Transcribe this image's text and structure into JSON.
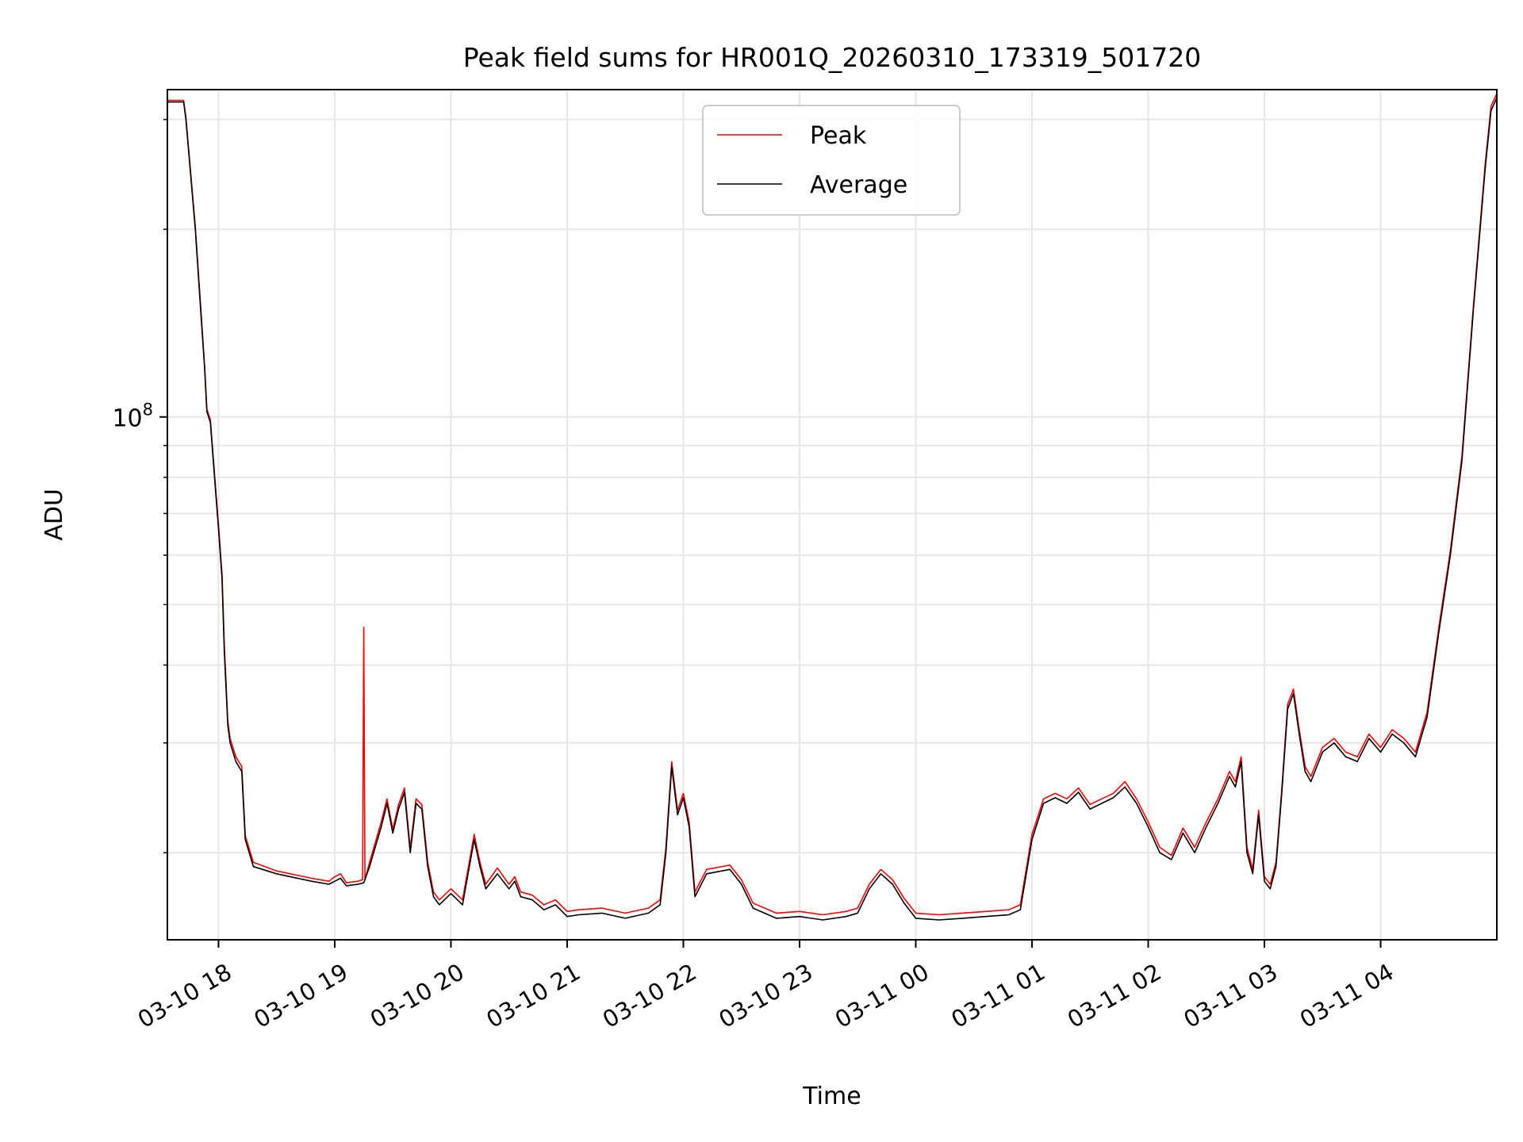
{
  "chart_data": {
    "type": "line",
    "title": "Peak field sums for HR001Q_20260310_173319_501720",
    "xlabel": "Time",
    "ylabel": "ADU",
    "yscale": "log",
    "ylim": [
      14500000,
      335000000
    ],
    "xlim_hours": [
      17.56,
      29.0
    ],
    "x_ticks": [
      {
        "hour": 18,
        "label": "03-10 18"
      },
      {
        "hour": 19,
        "label": "03-10 19"
      },
      {
        "hour": 20,
        "label": "03-10 20"
      },
      {
        "hour": 21,
        "label": "03-10 21"
      },
      {
        "hour": 22,
        "label": "03-10 22"
      },
      {
        "hour": 23,
        "label": "03-10 23"
      },
      {
        "hour": 24,
        "label": "03-11 00"
      },
      {
        "hour": 25,
        "label": "03-11 01"
      },
      {
        "hour": 26,
        "label": "03-11 02"
      },
      {
        "hour": 27,
        "label": "03-11 03"
      },
      {
        "hour": 28,
        "label": "03-11 04"
      }
    ],
    "y_major_ticks": [
      {
        "value": 100000000,
        "base": "10",
        "exp": "8"
      }
    ],
    "y_minor_ticks": [
      20000000,
      30000000,
      40000000,
      50000000,
      60000000,
      70000000,
      80000000,
      90000000,
      200000000,
      300000000
    ],
    "grid": true,
    "legend": {
      "position": "top-center",
      "entries": [
        "Peak",
        "Average"
      ]
    },
    "series": [
      {
        "name": "Average",
        "color": "#000000",
        "x_hours": [
          17.56,
          17.7,
          17.72,
          17.8,
          17.85,
          17.88,
          17.9,
          17.93,
          17.97,
          18.0,
          18.03,
          18.05,
          18.08,
          18.1,
          18.15,
          18.2,
          18.23,
          18.3,
          18.5,
          18.8,
          18.95,
          19.0,
          19.05,
          19.1,
          19.2,
          19.25,
          19.3,
          19.4,
          19.45,
          19.5,
          19.55,
          19.6,
          19.65,
          19.7,
          19.75,
          19.8,
          19.85,
          19.9,
          20.0,
          20.1,
          20.2,
          20.25,
          20.3,
          20.4,
          20.5,
          20.55,
          20.6,
          20.7,
          20.8,
          20.9,
          21.0,
          21.1,
          21.3,
          21.5,
          21.7,
          21.8,
          21.85,
          21.9,
          21.95,
          22.0,
          22.05,
          22.1,
          22.2,
          22.4,
          22.5,
          22.6,
          22.8,
          23.0,
          23.2,
          23.4,
          23.5,
          23.6,
          23.7,
          23.8,
          23.9,
          24.0,
          24.2,
          24.4,
          24.6,
          24.8,
          24.9,
          25.0,
          25.1,
          25.2,
          25.3,
          25.4,
          25.5,
          25.6,
          25.7,
          25.8,
          25.9,
          26.0,
          26.1,
          26.2,
          26.3,
          26.4,
          26.5,
          26.6,
          26.7,
          26.75,
          26.8,
          26.85,
          26.9,
          26.95,
          27.0,
          27.05,
          27.1,
          27.15,
          27.2,
          27.25,
          27.3,
          27.35,
          27.4,
          27.5,
          27.6,
          27.7,
          27.8,
          27.9,
          28.0,
          28.1,
          28.2,
          28.3,
          28.4,
          28.5,
          28.6,
          28.7,
          28.8,
          28.9,
          28.95,
          29.0
        ],
        "values": [
          320000000,
          320000000,
          300000000,
          200000000,
          145000000,
          120000000,
          102000000,
          98000000,
          78000000,
          66000000,
          55000000,
          42000000,
          32000000,
          30000000,
          28000000,
          27000000,
          21000000,
          19000000,
          18500000,
          18000000,
          17800000,
          18000000,
          18200000,
          17700000,
          17800000,
          17900000,
          19000000,
          22000000,
          24000000,
          21500000,
          23500000,
          25000000,
          20000000,
          24000000,
          23500000,
          19000000,
          17000000,
          16500000,
          17200000,
          16500000,
          21000000,
          19000000,
          17500000,
          18500000,
          17500000,
          18000000,
          17000000,
          16800000,
          16200000,
          16500000,
          15800000,
          15900000,
          16000000,
          15700000,
          16000000,
          16500000,
          20000000,
          27500000,
          23000000,
          24500000,
          22000000,
          17000000,
          18500000,
          18800000,
          17800000,
          16300000,
          15700000,
          15800000,
          15600000,
          15800000,
          16000000,
          17500000,
          18500000,
          17800000,
          16600000,
          15700000,
          15600000,
          15700000,
          15800000,
          15900000,
          16200000,
          21000000,
          24000000,
          24500000,
          24000000,
          25000000,
          23500000,
          24000000,
          24500000,
          25500000,
          24000000,
          22000000,
          20000000,
          19500000,
          21500000,
          20000000,
          22000000,
          24000000,
          26500000,
          25500000,
          28000000,
          20000000,
          18500000,
          23000000,
          18000000,
          17500000,
          19000000,
          25000000,
          34000000,
          36000000,
          31000000,
          27000000,
          26000000,
          29000000,
          30000000,
          28500000,
          28000000,
          30500000,
          29000000,
          31000000,
          30000000,
          28500000,
          33000000,
          45000000,
          60000000,
          85000000,
          150000000,
          250000000,
          310000000,
          325000000
        ]
      },
      {
        "name": "Peak",
        "color": "#ff0000",
        "x_hours": [
          17.56,
          17.7,
          17.72,
          17.8,
          17.85,
          17.88,
          17.9,
          17.93,
          17.97,
          18.0,
          18.03,
          18.05,
          18.08,
          18.1,
          18.15,
          18.2,
          18.23,
          18.3,
          18.5,
          18.8,
          18.95,
          19.0,
          19.05,
          19.1,
          19.2,
          19.24,
          19.25,
          19.26,
          19.3,
          19.4,
          19.45,
          19.5,
          19.55,
          19.6,
          19.65,
          19.7,
          19.75,
          19.8,
          19.85,
          19.9,
          20.0,
          20.1,
          20.2,
          20.25,
          20.3,
          20.4,
          20.5,
          20.55,
          20.6,
          20.7,
          20.8,
          20.9,
          21.0,
          21.1,
          21.3,
          21.5,
          21.7,
          21.8,
          21.85,
          21.9,
          21.95,
          22.0,
          22.05,
          22.1,
          22.2,
          22.4,
          22.5,
          22.6,
          22.8,
          23.0,
          23.2,
          23.4,
          23.5,
          23.6,
          23.7,
          23.8,
          23.9,
          24.0,
          24.2,
          24.4,
          24.6,
          24.8,
          24.9,
          25.0,
          25.1,
          25.2,
          25.3,
          25.4,
          25.5,
          25.6,
          25.7,
          25.8,
          25.9,
          26.0,
          26.1,
          26.2,
          26.3,
          26.4,
          26.5,
          26.6,
          26.7,
          26.75,
          26.8,
          26.85,
          26.9,
          26.95,
          27.0,
          27.05,
          27.1,
          27.15,
          27.2,
          27.25,
          27.3,
          27.35,
          27.4,
          27.5,
          27.6,
          27.7,
          27.8,
          27.9,
          28.0,
          28.1,
          28.2,
          28.3,
          28.4,
          28.5,
          28.6,
          28.7,
          28.8,
          28.9,
          28.95,
          29.0
        ],
        "values": [
          322000000,
          322000000,
          302000000,
          202000000,
          147000000,
          121000000,
          103000000,
          99000000,
          79000000,
          67000000,
          56000000,
          43000000,
          32500000,
          30500000,
          28500000,
          27500000,
          21300000,
          19300000,
          18700000,
          18200000,
          18000000,
          18300000,
          18500000,
          17900000,
          18000000,
          18100000,
          46000000,
          18100000,
          19300000,
          22400000,
          24400000,
          21800000,
          23900000,
          25400000,
          20300000,
          24400000,
          23900000,
          19300000,
          17300000,
          16800000,
          17500000,
          16800000,
          21400000,
          19300000,
          17800000,
          18900000,
          17800000,
          18300000,
          17300000,
          17100000,
          16500000,
          16800000,
          16100000,
          16200000,
          16300000,
          16000000,
          16300000,
          16800000,
          20400000,
          28000000,
          23400000,
          24900000,
          22400000,
          17300000,
          18800000,
          19100000,
          18100000,
          16600000,
          16000000,
          16100000,
          15900000,
          16100000,
          16300000,
          17800000,
          18800000,
          18100000,
          16900000,
          16000000,
          15900000,
          16000000,
          16100000,
          16200000,
          16500000,
          21400000,
          24400000,
          24900000,
          24400000,
          25400000,
          23900000,
          24400000,
          24900000,
          26000000,
          24400000,
          22400000,
          20400000,
          19800000,
          21900000,
          20400000,
          22400000,
          24400000,
          27000000,
          26000000,
          28500000,
          20400000,
          18800000,
          23400000,
          18300000,
          17800000,
          19300000,
          25400000,
          34600000,
          36600000,
          31500000,
          27500000,
          26500000,
          29500000,
          30500000,
          29000000,
          28500000,
          31000000,
          29500000,
          31500000,
          30500000,
          29000000,
          33600000,
          45800000,
          61000000,
          86500000,
          152000000,
          254000000,
          315000000,
          330000000
        ]
      }
    ]
  }
}
